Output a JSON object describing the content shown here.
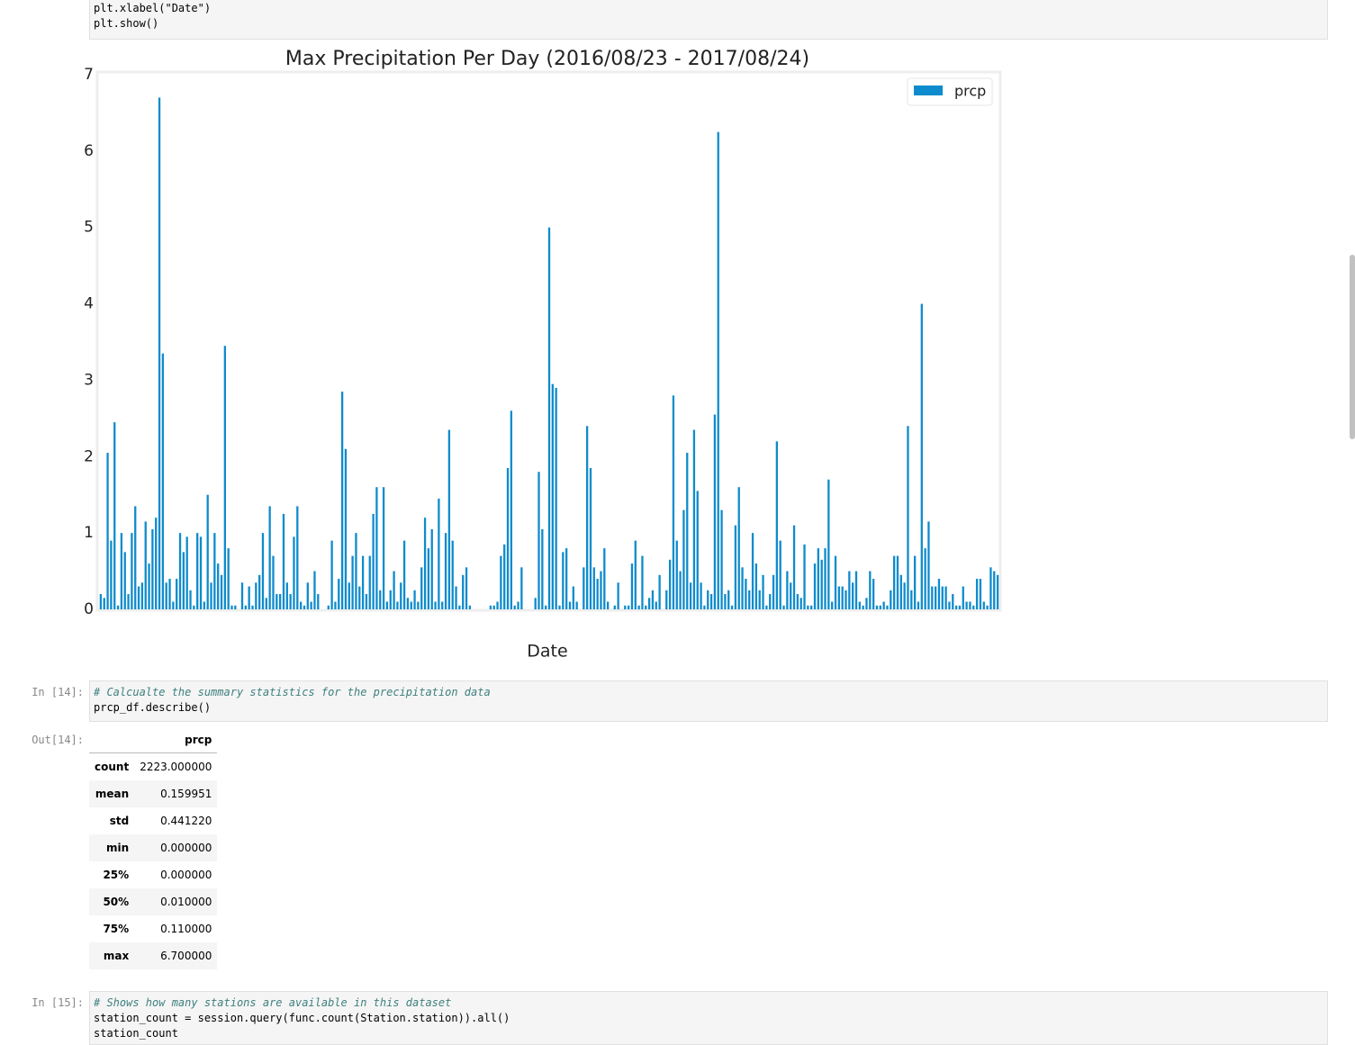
{
  "code_top": {
    "lines": [
      "plt.xlabel(\"Date\")",
      "plt.show()"
    ]
  },
  "chart_data": {
    "type": "bar",
    "title": "Max Precipitation Per Day (2016/08/23 - 2017/08/24)",
    "x_label": "Date",
    "values": [
      0.2,
      0.15,
      2.05,
      0.9,
      2.45,
      0.05,
      1.0,
      0.75,
      0.2,
      1.0,
      1.35,
      0.3,
      0.35,
      1.15,
      0.6,
      1.05,
      1.2,
      6.7,
      3.35,
      0.35,
      0.4,
      0.1,
      0.4,
      1.0,
      0.75,
      0.95,
      0.25,
      0.05,
      1.0,
      0.95,
      0.1,
      1.5,
      0.35,
      1.0,
      0.6,
      0.45,
      3.45,
      0.8,
      0.05,
      0.05,
      0,
      0.35,
      0.05,
      0.3,
      0.05,
      0.35,
      0.45,
      1.0,
      0.15,
      1.35,
      0.7,
      0.2,
      0.2,
      1.25,
      0.35,
      0.2,
      0.95,
      1.35,
      0.1,
      0.05,
      0.35,
      0.1,
      0.5,
      0.2,
      0,
      0,
      0.05,
      0.9,
      0.1,
      0.4,
      2.85,
      2.1,
      0.35,
      0.7,
      1.0,
      0.3,
      0.7,
      0.2,
      0.7,
      1.25,
      1.6,
      0.25,
      1.6,
      0.1,
      0.25,
      0.5,
      0.1,
      0.35,
      0.9,
      0.15,
      0.1,
      0.25,
      0.1,
      0.55,
      1.2,
      0.8,
      1.05,
      0.1,
      1.45,
      0.1,
      1.0,
      2.35,
      0.9,
      0.3,
      0.05,
      0.45,
      0.55,
      0.05,
      0,
      0,
      0,
      0,
      0,
      0.05,
      0.05,
      0.1,
      0.7,
      0.85,
      1.85,
      2.6,
      0.05,
      0.1,
      0.55,
      0,
      0,
      0,
      0.15,
      1.8,
      1.05,
      0.05,
      5.0,
      2.95,
      2.9,
      0.05,
      0.75,
      0.8,
      0.1,
      0.3,
      0.1,
      0,
      0.55,
      2.4,
      1.85,
      0.55,
      0.4,
      0.5,
      0.8,
      0.1,
      0,
      0.05,
      0.35,
      0,
      0.05,
      0.05,
      0.6,
      0.9,
      0.05,
      0.7,
      0.05,
      0.15,
      0.25,
      0.1,
      0.45,
      0,
      0.25,
      0.65,
      2.8,
      0.9,
      0.5,
      1.3,
      2.05,
      0.35,
      2.35,
      1.55,
      0.35,
      0.05,
      0.25,
      0.2,
      2.55,
      6.25,
      1.3,
      0.2,
      0.25,
      0.05,
      1.1,
      1.6,
      0.55,
      0.4,
      0.25,
      1.0,
      0.6,
      0.25,
      0.45,
      0.05,
      0.2,
      0.45,
      2.2,
      0.9,
      0.05,
      0.5,
      0.35,
      1.1,
      0.2,
      0.15,
      0.85,
      0.05,
      0.05,
      0.6,
      0.8,
      0.65,
      0.8,
      1.7,
      0.1,
      0.7,
      0.3,
      0.3,
      0.25,
      0.5,
      0.35,
      0.5,
      0.1,
      0.05,
      0.15,
      0.5,
      0.4,
      0.05,
      0.05,
      0.1,
      0.05,
      0.25,
      0.7,
      0.7,
      0.45,
      0.35,
      2.4,
      0.25,
      0.7,
      0.1,
      4.0,
      0.8,
      1.15,
      0.3,
      0.3,
      0.4,
      0.3,
      0.3,
      0.1,
      0.2,
      0.05,
      0.05,
      0.3,
      0.1,
      0.1,
      0.05,
      0.4,
      0.4,
      0.1,
      0.05,
      0.55,
      0.5,
      0.45
    ],
    "color": "#0e8bcc",
    "legend": {
      "label": "prcp",
      "position": "upper right"
    },
    "ylim": [
      0,
      7
    ],
    "yticks": [
      0,
      1,
      2,
      3,
      4,
      5,
      6,
      7
    ]
  },
  "cells": [
    {
      "prompt": "In [14]:",
      "comment": "# Calcualte the summary statistics for the precipitation data",
      "lines": [
        "prcp_df.describe()"
      ]
    },
    {
      "prompt": "In [15]:",
      "comment": "# Shows how many stations are available in this dataset",
      "lines": [
        "station_count = session.query(func.count(Station.station)).all()",
        "station_count"
      ]
    }
  ],
  "output": {
    "prompt": "Out[14]:",
    "table": {
      "header": "prcp",
      "rows": [
        [
          "count",
          "2223.000000"
        ],
        [
          "mean",
          "0.159951"
        ],
        [
          "std",
          "0.441220"
        ],
        [
          "min",
          "0.000000"
        ],
        [
          "25%",
          "0.000000"
        ],
        [
          "50%",
          "0.010000"
        ],
        [
          "75%",
          "0.110000"
        ],
        [
          "max",
          "6.700000"
        ]
      ]
    }
  }
}
